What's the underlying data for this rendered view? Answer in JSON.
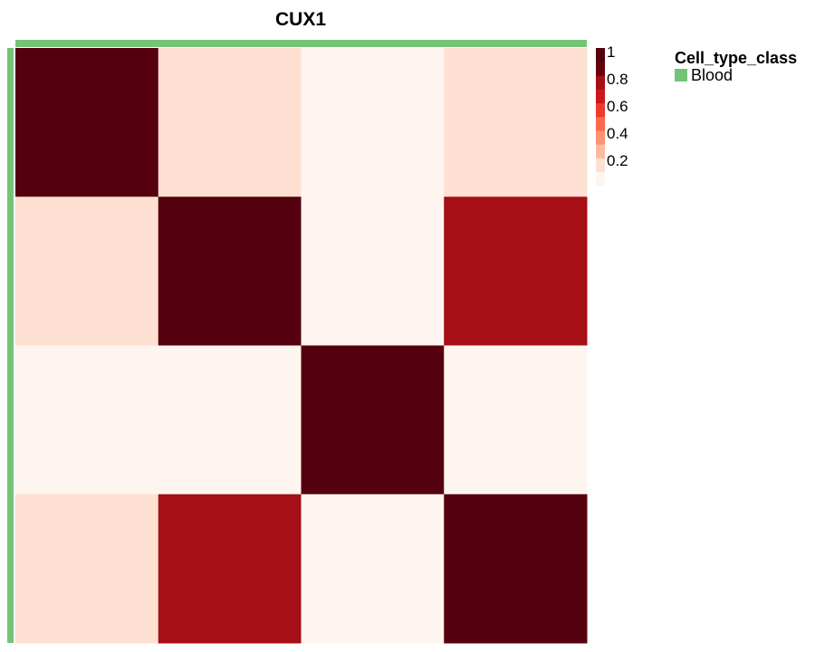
{
  "chart_data": {
    "type": "heatmap",
    "title": "CUX1",
    "rows": 4,
    "cols": 4,
    "values": [
      [
        1.0,
        0.15,
        0.05,
        0.15
      ],
      [
        0.15,
        1.0,
        0.05,
        0.7
      ],
      [
        0.05,
        0.05,
        1.0,
        0.05
      ],
      [
        0.15,
        0.7,
        0.05,
        1.0
      ]
    ],
    "color_scale": {
      "min": 0,
      "max": 1,
      "colors": [
        "#FFF5F0",
        "#FEE0D2",
        "#FCBBA1",
        "#FC9272",
        "#FB6A4A",
        "#EF3B2C",
        "#CB181D",
        "#A50F15",
        "#67000D",
        "#55000E"
      ],
      "ticks": [
        "1",
        "0.8",
        "0.6",
        "0.4",
        "0.2"
      ]
    },
    "annotation": {
      "title": "Cell_type_class",
      "items": [
        {
          "label": "Blood",
          "color": "#74C476"
        }
      ]
    }
  }
}
